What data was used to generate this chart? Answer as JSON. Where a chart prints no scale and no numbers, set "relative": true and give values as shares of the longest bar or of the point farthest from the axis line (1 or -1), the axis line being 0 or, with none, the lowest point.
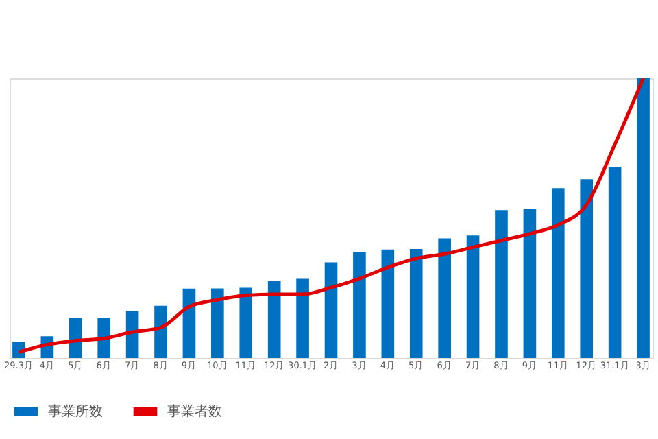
{
  "chart_data": {
    "type": "bar",
    "relative": true,
    "legend": "bottom",
    "grid": false,
    "categories": [
      "29.3月",
      "4月",
      "5月",
      "6月",
      "7月",
      "8月",
      "9月",
      "10月",
      "11月",
      "12月",
      "30.1月",
      "2月",
      "3月",
      "4月",
      "5月",
      "6月",
      "7月",
      "8月",
      "9月",
      "11月",
      "12月",
      "31.1月",
      "3月"
    ],
    "series": [
      {
        "name": "事業所数",
        "color": "#0070c0",
        "values": [
          0.058,
          0.078,
          0.142,
          0.142,
          0.168,
          0.187,
          0.248,
          0.249,
          0.251,
          0.275,
          0.283,
          0.342,
          0.38,
          0.388,
          0.39,
          0.428,
          0.438,
          0.529,
          0.532,
          0.607,
          0.639,
          0.684,
          1
        ]
      },
      {
        "name": "事業者数",
        "type": "line",
        "color": "#e00000",
        "values": [
          0.021,
          0.048,
          0.062,
          0.07,
          0.093,
          0.109,
          0.184,
          0.208,
          0.224,
          0.228,
          0.228,
          0.252,
          0.284,
          0.324,
          0.356,
          0.372,
          0.396,
          0.42,
          0.444,
          0.476,
          0.548,
          0.764,
          1
        ]
      }
    ]
  }
}
